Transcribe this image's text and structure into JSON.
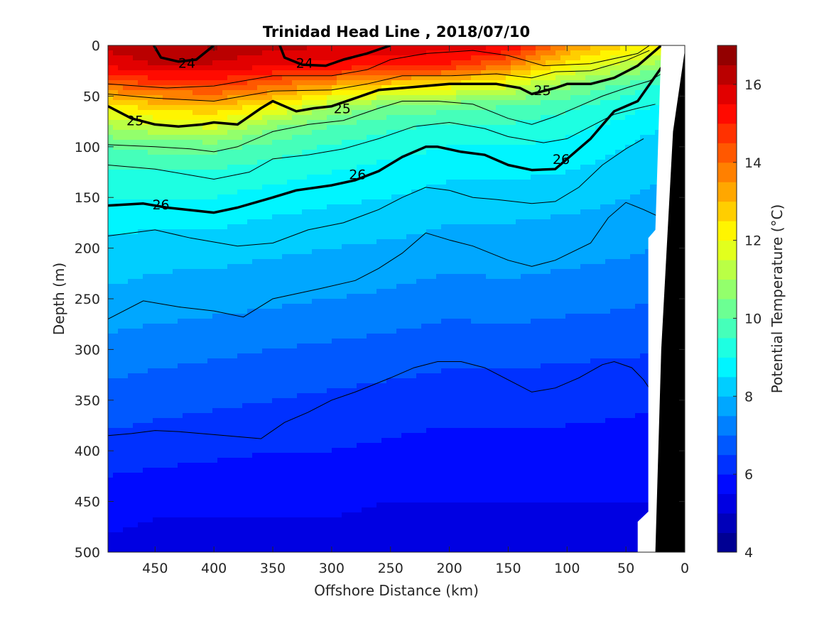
{
  "chart_data": {
    "type": "contourf",
    "title": "Trinidad Head Line , 2018/07/10",
    "xlabel": "Offshore Distance (km)",
    "ylabel": "Depth (m)",
    "colorbar_label": "Potential Temperature (°C)",
    "xlim": [
      490,
      0
    ],
    "ylim": [
      0,
      500
    ],
    "x_reversed": true,
    "y_reversed": true,
    "x_ticks": [
      450,
      400,
      350,
      300,
      250,
      200,
      150,
      100,
      50,
      0
    ],
    "y_ticks": [
      0,
      50,
      100,
      150,
      200,
      250,
      300,
      350,
      400,
      450,
      500
    ],
    "colorbar": {
      "range": [
        4,
        17
      ],
      "ticks": [
        4,
        6,
        8,
        10,
        12,
        14,
        16
      ],
      "colormap": "jet",
      "levels": 26
    },
    "temperature_section": {
      "distance_km": [
        490,
        450,
        400,
        350,
        300,
        250,
        200,
        150,
        100,
        50,
        25
      ],
      "depth_m": [
        0,
        20,
        40,
        60,
        80,
        100,
        125,
        150,
        175,
        200,
        250,
        300,
        350,
        400,
        450,
        500
      ],
      "temperature_c": [
        [
          16.2,
          16.4,
          16.6,
          16.2,
          16.0,
          15.8,
          15.8,
          15.6,
          13.6,
          12.6,
          12.2
        ],
        [
          15.6,
          16.0,
          15.9,
          15.5,
          15.3,
          15.1,
          14.9,
          13.8,
          12.2,
          11.2,
          10.8
        ],
        [
          14.0,
          14.4,
          14.6,
          14.0,
          13.2,
          12.6,
          12.2,
          11.6,
          10.6,
          9.8,
          9.4
        ],
        [
          12.2,
          12.8,
          13.0,
          12.2,
          11.0,
          10.4,
          10.2,
          10.0,
          9.6,
          9.2,
          9.0
        ],
        [
          11.0,
          11.4,
          11.6,
          10.6,
          10.0,
          9.6,
          9.4,
          9.4,
          9.2,
          8.8,
          8.6
        ],
        [
          10.0,
          10.2,
          10.2,
          9.8,
          9.4,
          9.2,
          9.0,
          9.0,
          8.8,
          8.5,
          8.2
        ],
        [
          9.4,
          9.4,
          9.4,
          9.2,
          9.0,
          8.8,
          8.6,
          8.6,
          8.5,
          8.3,
          8.1
        ],
        [
          9.0,
          9.0,
          9.0,
          8.8,
          8.6,
          8.5,
          8.3,
          8.3,
          8.2,
          8.0,
          7.9
        ],
        [
          8.7,
          8.6,
          8.6,
          8.4,
          8.3,
          8.2,
          8.0,
          8.0,
          7.9,
          7.8,
          7.7
        ],
        [
          8.3,
          8.2,
          8.2,
          8.1,
          8.0,
          7.9,
          7.8,
          7.8,
          7.7,
          7.6,
          7.5
        ],
        [
          7.9,
          7.8,
          7.7,
          7.6,
          7.5,
          7.4,
          7.2,
          7.3,
          7.2,
          7.1,
          7.0
        ],
        [
          7.3,
          7.2,
          7.1,
          7.0,
          6.9,
          6.8,
          6.7,
          6.7,
          6.6,
          6.6,
          6.5
        ],
        [
          6.8,
          6.7,
          6.6,
          6.5,
          6.4,
          6.3,
          6.2,
          6.2,
          6.2,
          6.1,
          6.1
        ],
        [
          6.3,
          6.2,
          6.1,
          6.0,
          6.0,
          5.9,
          5.8,
          5.8,
          5.8,
          5.8,
          5.7
        ],
        [
          5.7,
          5.6,
          5.6,
          5.6,
          5.6,
          5.5,
          5.5,
          5.5,
          5.5,
          5.5,
          5.5
        ],
        [
          5.4,
          5.3,
          5.3,
          5.3,
          5.3,
          5.2,
          5.2,
          5.2,
          5.2,
          5.3,
          5.3
        ]
      ]
    },
    "density_contours": [
      {
        "level": "24",
        "labels": [
          {
            "x": 423,
            "y": 17
          },
          {
            "x": 323,
            "y": 17
          }
        ],
        "segments": [
          [
            [
              451,
              0
            ],
            [
              445,
              12
            ],
            [
              430,
              16
            ],
            [
              415,
              14
            ],
            [
              400,
              0
            ]
          ],
          [
            [
              344,
              0
            ],
            [
              340,
              12
            ],
            [
              325,
              19
            ],
            [
              305,
              20
            ],
            [
              290,
              14
            ],
            [
              270,
              8
            ],
            [
              250,
              0
            ]
          ]
        ]
      },
      {
        "level": "25",
        "labels": [
          {
            "x": 467,
            "y": 74
          },
          {
            "x": 291,
            "y": 62
          },
          {
            "x": 121,
            "y": 44
          }
        ],
        "segments": [
          [
            [
              490,
              60
            ],
            [
              470,
              72
            ],
            [
              450,
              78
            ],
            [
              430,
              80
            ],
            [
              410,
              78
            ],
            [
              400,
              76
            ],
            [
              380,
              78
            ],
            [
              360,
              62
            ],
            [
              350,
              55
            ],
            [
              330,
              65
            ],
            [
              315,
              62
            ],
            [
              300,
              60
            ],
            [
              280,
              52
            ],
            [
              260,
              44
            ],
            [
              240,
              42
            ],
            [
              220,
              40
            ],
            [
              200,
              38
            ],
            [
              180,
              38
            ],
            [
              160,
              38
            ],
            [
              140,
              42
            ],
            [
              130,
              48
            ],
            [
              110,
              42
            ],
            [
              100,
              38
            ],
            [
              80,
              38
            ],
            [
              60,
              32
            ],
            [
              40,
              20
            ],
            [
              30,
              10
            ],
            [
              20,
              0
            ]
          ]
        ]
      },
      {
        "level": "26",
        "labels": [
          {
            "x": 445,
            "y": 157
          },
          {
            "x": 278,
            "y": 127
          },
          {
            "x": 105,
            "y": 112
          }
        ],
        "segments": [
          [
            [
              490,
              158
            ],
            [
              460,
              156
            ],
            [
              440,
              160
            ],
            [
              400,
              165
            ],
            [
              380,
              160
            ],
            [
              350,
              150
            ],
            [
              330,
              143
            ],
            [
              300,
              138
            ],
            [
              280,
              133
            ],
            [
              260,
              124
            ],
            [
              240,
              110
            ],
            [
              220,
              100
            ],
            [
              210,
              100
            ],
            [
              190,
              105
            ],
            [
              170,
              108
            ],
            [
              150,
              118
            ],
            [
              130,
              123
            ],
            [
              110,
              122
            ],
            [
              100,
              112
            ],
            [
              80,
              92
            ],
            [
              60,
              65
            ],
            [
              40,
              55
            ],
            [
              20,
              22
            ]
          ]
        ]
      }
    ],
    "thin_contours": [
      [
        [
          490,
          38
        ],
        [
          440,
          42
        ],
        [
          400,
          40
        ],
        [
          350,
          30
        ],
        [
          300,
          30
        ],
        [
          270,
          24
        ],
        [
          250,
          14
        ],
        [
          220,
          8
        ],
        [
          180,
          5
        ],
        [
          150,
          10
        ],
        [
          120,
          20
        ],
        [
          80,
          18
        ],
        [
          40,
          8
        ],
        [
          30,
          0
        ]
      ],
      [
        [
          490,
          48
        ],
        [
          450,
          52
        ],
        [
          400,
          55
        ],
        [
          350,
          45
        ],
        [
          300,
          44
        ],
        [
          270,
          38
        ],
        [
          240,
          30
        ],
        [
          200,
          30
        ],
        [
          160,
          28
        ],
        [
          130,
          32
        ],
        [
          110,
          26
        ],
        [
          80,
          25
        ],
        [
          50,
          15
        ],
        [
          30,
          5
        ]
      ],
      [
        [
          490,
          98
        ],
        [
          450,
          100
        ],
        [
          420,
          102
        ],
        [
          400,
          105
        ],
        [
          380,
          100
        ],
        [
          350,
          85
        ],
        [
          320,
          78
        ],
        [
          290,
          74
        ],
        [
          260,
          62
        ],
        [
          240,
          55
        ],
        [
          210,
          55
        ],
        [
          180,
          58
        ],
        [
          150,
          72
        ],
        [
          130,
          78
        ],
        [
          110,
          70
        ],
        [
          90,
          60
        ],
        [
          70,
          50
        ],
        [
          50,
          42
        ],
        [
          30,
          35
        ],
        [
          20,
          28
        ]
      ],
      [
        [
          490,
          118
        ],
        [
          450,
          122
        ],
        [
          420,
          128
        ],
        [
          400,
          132
        ],
        [
          370,
          125
        ],
        [
          350,
          112
        ],
        [
          320,
          108
        ],
        [
          290,
          102
        ],
        [
          260,
          92
        ],
        [
          230,
          80
        ],
        [
          200,
          76
        ],
        [
          170,
          82
        ],
        [
          150,
          90
        ],
        [
          120,
          96
        ],
        [
          100,
          92
        ],
        [
          80,
          80
        ],
        [
          60,
          68
        ],
        [
          40,
          62
        ],
        [
          25,
          58
        ]
      ],
      [
        [
          490,
          188
        ],
        [
          450,
          182
        ],
        [
          420,
          190
        ],
        [
          380,
          198
        ],
        [
          350,
          195
        ],
        [
          320,
          182
        ],
        [
          290,
          175
        ],
        [
          260,
          162
        ],
        [
          240,
          150
        ],
        [
          220,
          140
        ],
        [
          200,
          143
        ],
        [
          180,
          150
        ],
        [
          160,
          152
        ],
        [
          130,
          156
        ],
        [
          110,
          154
        ],
        [
          90,
          140
        ],
        [
          70,
          118
        ],
        [
          50,
          102
        ],
        [
          35,
          92
        ]
      ],
      [
        [
          490,
          270
        ],
        [
          460,
          252
        ],
        [
          430,
          258
        ],
        [
          400,
          262
        ],
        [
          375,
          268
        ],
        [
          350,
          250
        ],
        [
          310,
          240
        ],
        [
          280,
          232
        ],
        [
          260,
          220
        ],
        [
          240,
          205
        ],
        [
          220,
          185
        ],
        [
          200,
          192
        ],
        [
          180,
          198
        ],
        [
          150,
          212
        ],
        [
          130,
          218
        ],
        [
          110,
          212
        ],
        [
          80,
          195
        ],
        [
          65,
          170
        ],
        [
          50,
          155
        ],
        [
          35,
          162
        ],
        [
          20,
          170
        ]
      ],
      [
        [
          490,
          385
        ],
        [
          470,
          383
        ],
        [
          450,
          380
        ],
        [
          430,
          381
        ],
        [
          400,
          384
        ],
        [
          380,
          386
        ],
        [
          360,
          388
        ],
        [
          340,
          372
        ],
        [
          320,
          362
        ],
        [
          300,
          350
        ],
        [
          280,
          342
        ],
        [
          265,
          335
        ],
        [
          250,
          328
        ],
        [
          230,
          318
        ],
        [
          210,
          312
        ],
        [
          190,
          312
        ],
        [
          170,
          318
        ],
        [
          150,
          330
        ],
        [
          130,
          342
        ],
        [
          110,
          338
        ],
        [
          90,
          328
        ],
        [
          70,
          315
        ],
        [
          60,
          312
        ],
        [
          45,
          318
        ],
        [
          35,
          330
        ],
        [
          28,
          342
        ]
      ]
    ]
  }
}
